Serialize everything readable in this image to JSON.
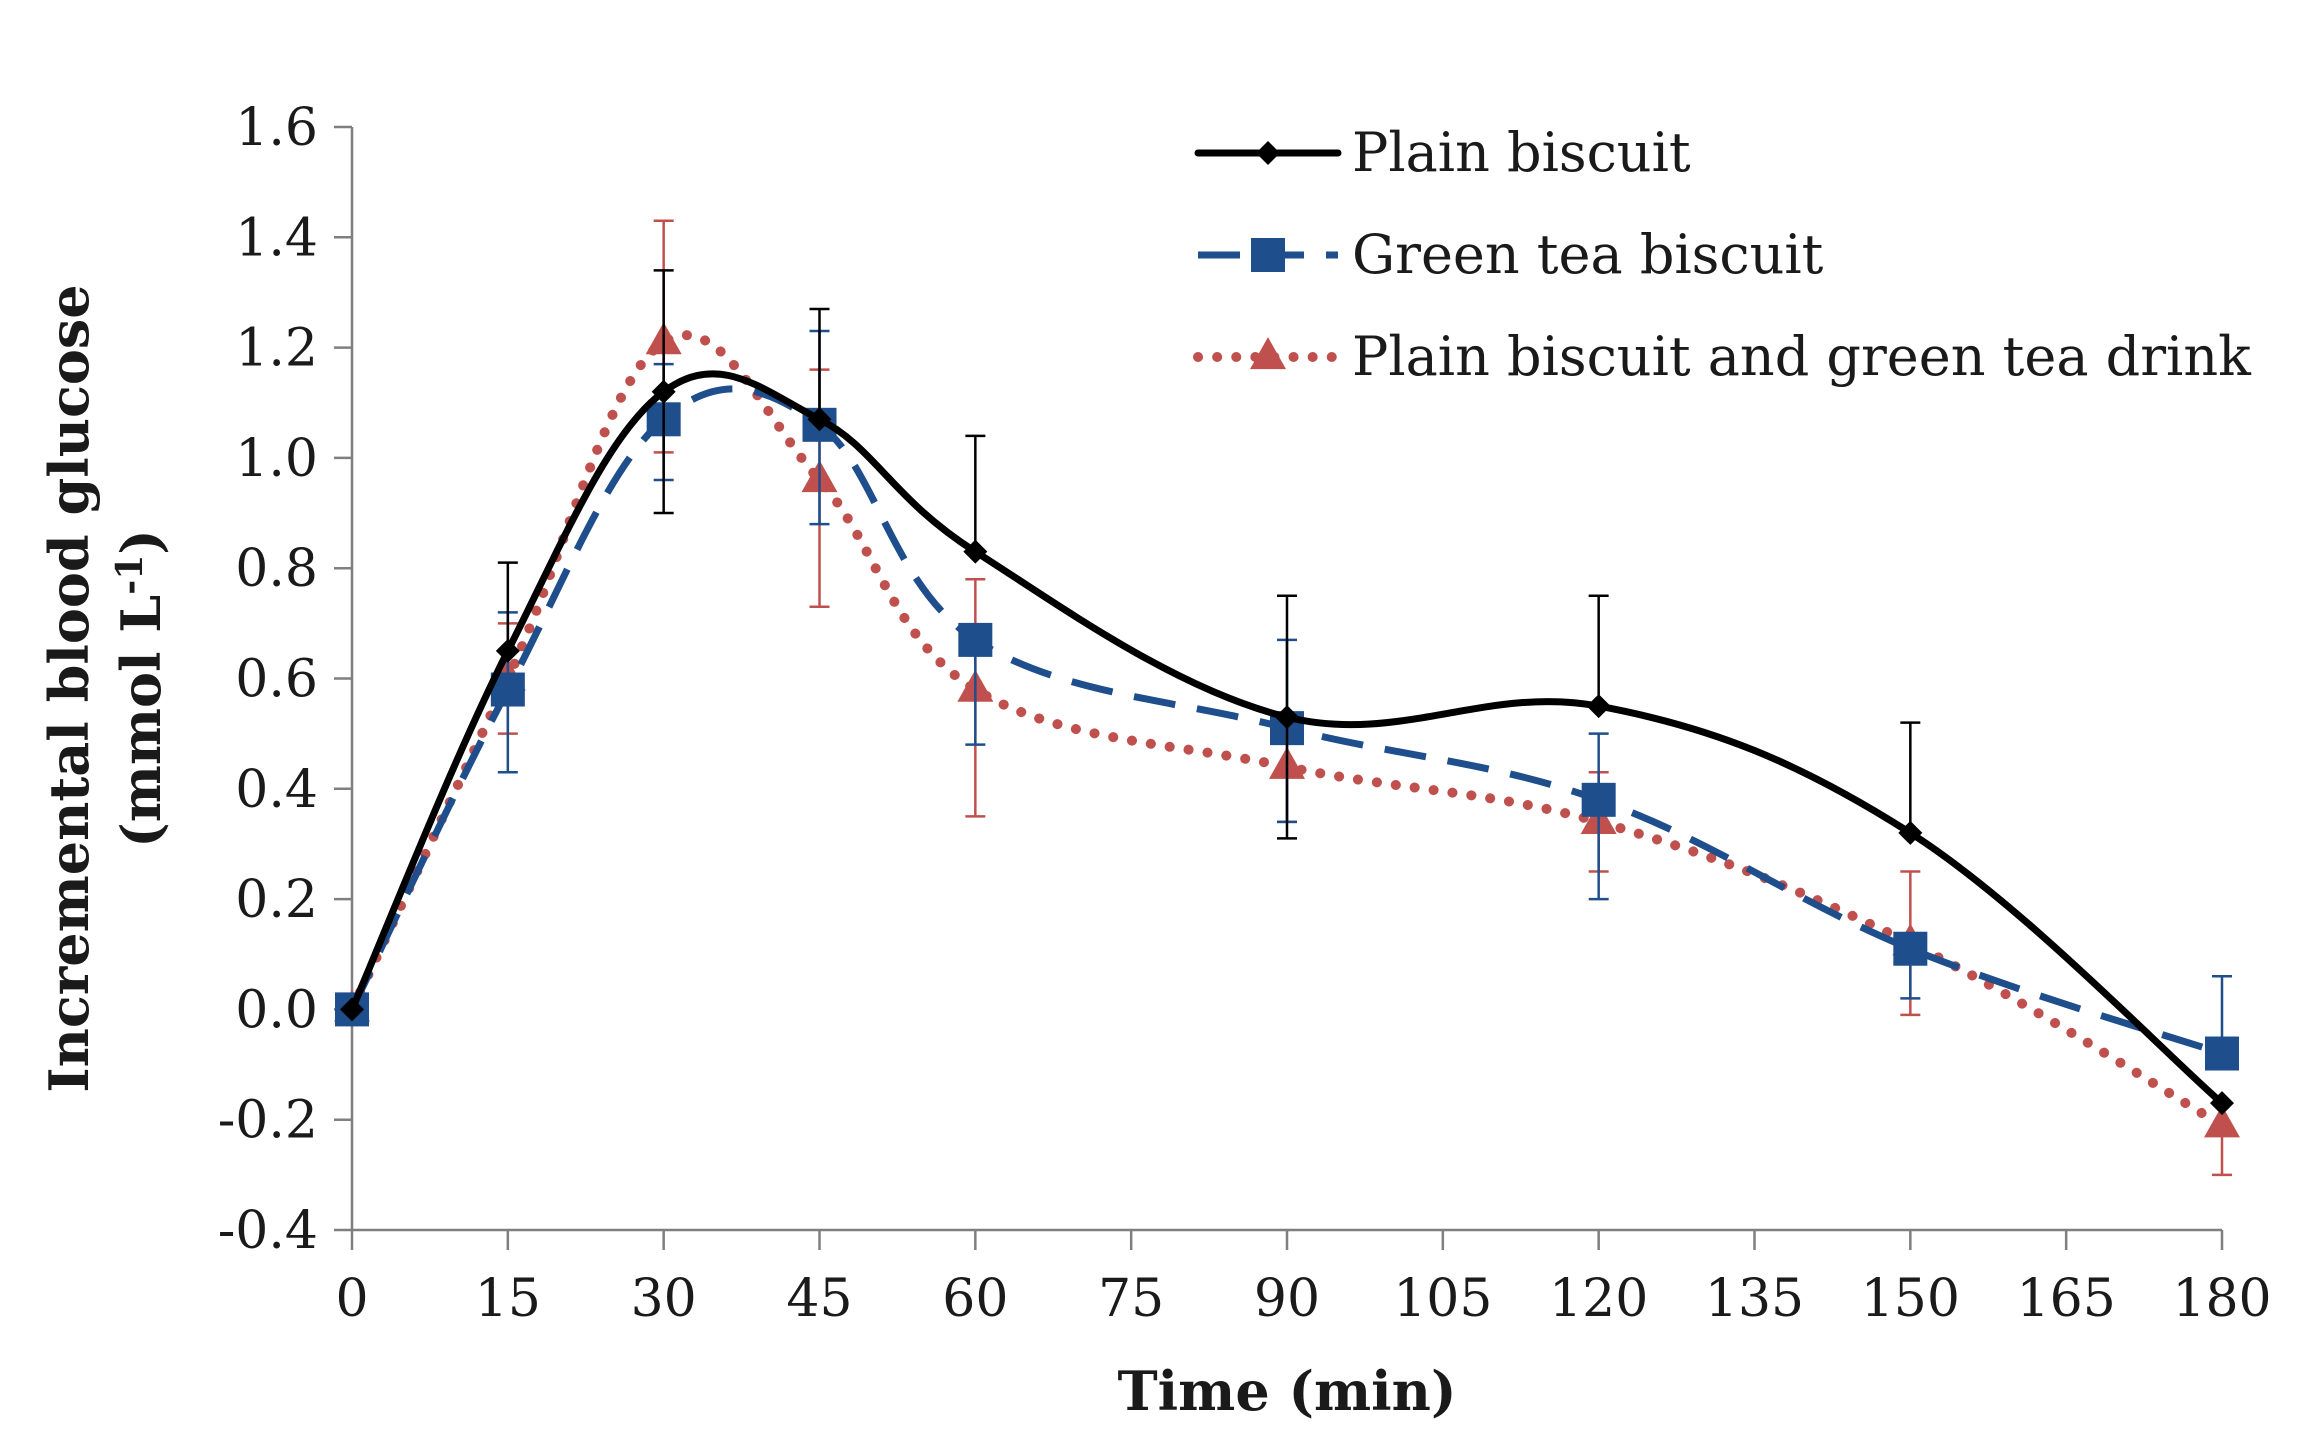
{
  "chart_data": {
    "type": "line",
    "xlabel": "Time (min)",
    "ylabel_line1": "Incremental blood glucose",
    "ylabel_line2_main": "(mmol L",
    "ylabel_line2_sup": "-1",
    "ylabel_line2_end": ")",
    "xlim": [
      0,
      180
    ],
    "ylim": [
      -0.4,
      1.6
    ],
    "x_ticks": [
      "0",
      "15",
      "30",
      "45",
      "60",
      "75",
      "90",
      "105",
      "120",
      "135",
      "150",
      "165",
      "180"
    ],
    "y_ticks": [
      "1.6",
      "1.4",
      "1.2",
      "1.0",
      "0.8",
      "0.6",
      "0.4",
      "0.2",
      "0.0",
      "-0.2",
      "-0.4"
    ],
    "legend_position": "top-right",
    "x": [
      0,
      15,
      30,
      45,
      60,
      90,
      120,
      150,
      180
    ],
    "series": [
      {
        "name": "Plain biscuit",
        "color": "#000000",
        "style": "solid",
        "marker": "diamond",
        "values": [
          0.0,
          0.65,
          1.12,
          1.07,
          0.83,
          0.53,
          0.55,
          0.32,
          -0.17
        ],
        "error_up": [
          0.0,
          0.16,
          0.22,
          0.2,
          0.21,
          0.22,
          0.2,
          0.2,
          0.0
        ],
        "error_down": [
          0.0,
          0.0,
          0.22,
          0.0,
          0.0,
          0.22,
          0.0,
          0.0,
          0.0
        ]
      },
      {
        "name": "Green tea biscuit",
        "color": "#1f4e8c",
        "style": "dashed",
        "marker": "square",
        "values": [
          0.0,
          0.58,
          1.07,
          1.06,
          0.67,
          0.51,
          0.38,
          0.11,
          -0.08
        ],
        "error_up": [
          0.0,
          0.14,
          0.1,
          0.17,
          0.0,
          0.16,
          0.12,
          0.0,
          0.14
        ],
        "error_down": [
          0.0,
          0.15,
          0.11,
          0.18,
          0.19,
          0.17,
          0.18,
          0.09,
          0.0
        ]
      },
      {
        "name": "Plain biscuit and green tea drink",
        "color": "#c0504d",
        "style": "dotted",
        "marker": "triangle",
        "values": [
          0.0,
          0.6,
          1.21,
          0.96,
          0.58,
          0.44,
          0.34,
          0.12,
          -0.21
        ],
        "error_up": [
          0.0,
          0.1,
          0.22,
          0.2,
          0.2,
          0.0,
          0.09,
          0.13,
          0.0
        ],
        "error_down": [
          0.0,
          0.1,
          0.2,
          0.23,
          0.23,
          0.1,
          0.09,
          0.13,
          0.09
        ]
      }
    ]
  }
}
